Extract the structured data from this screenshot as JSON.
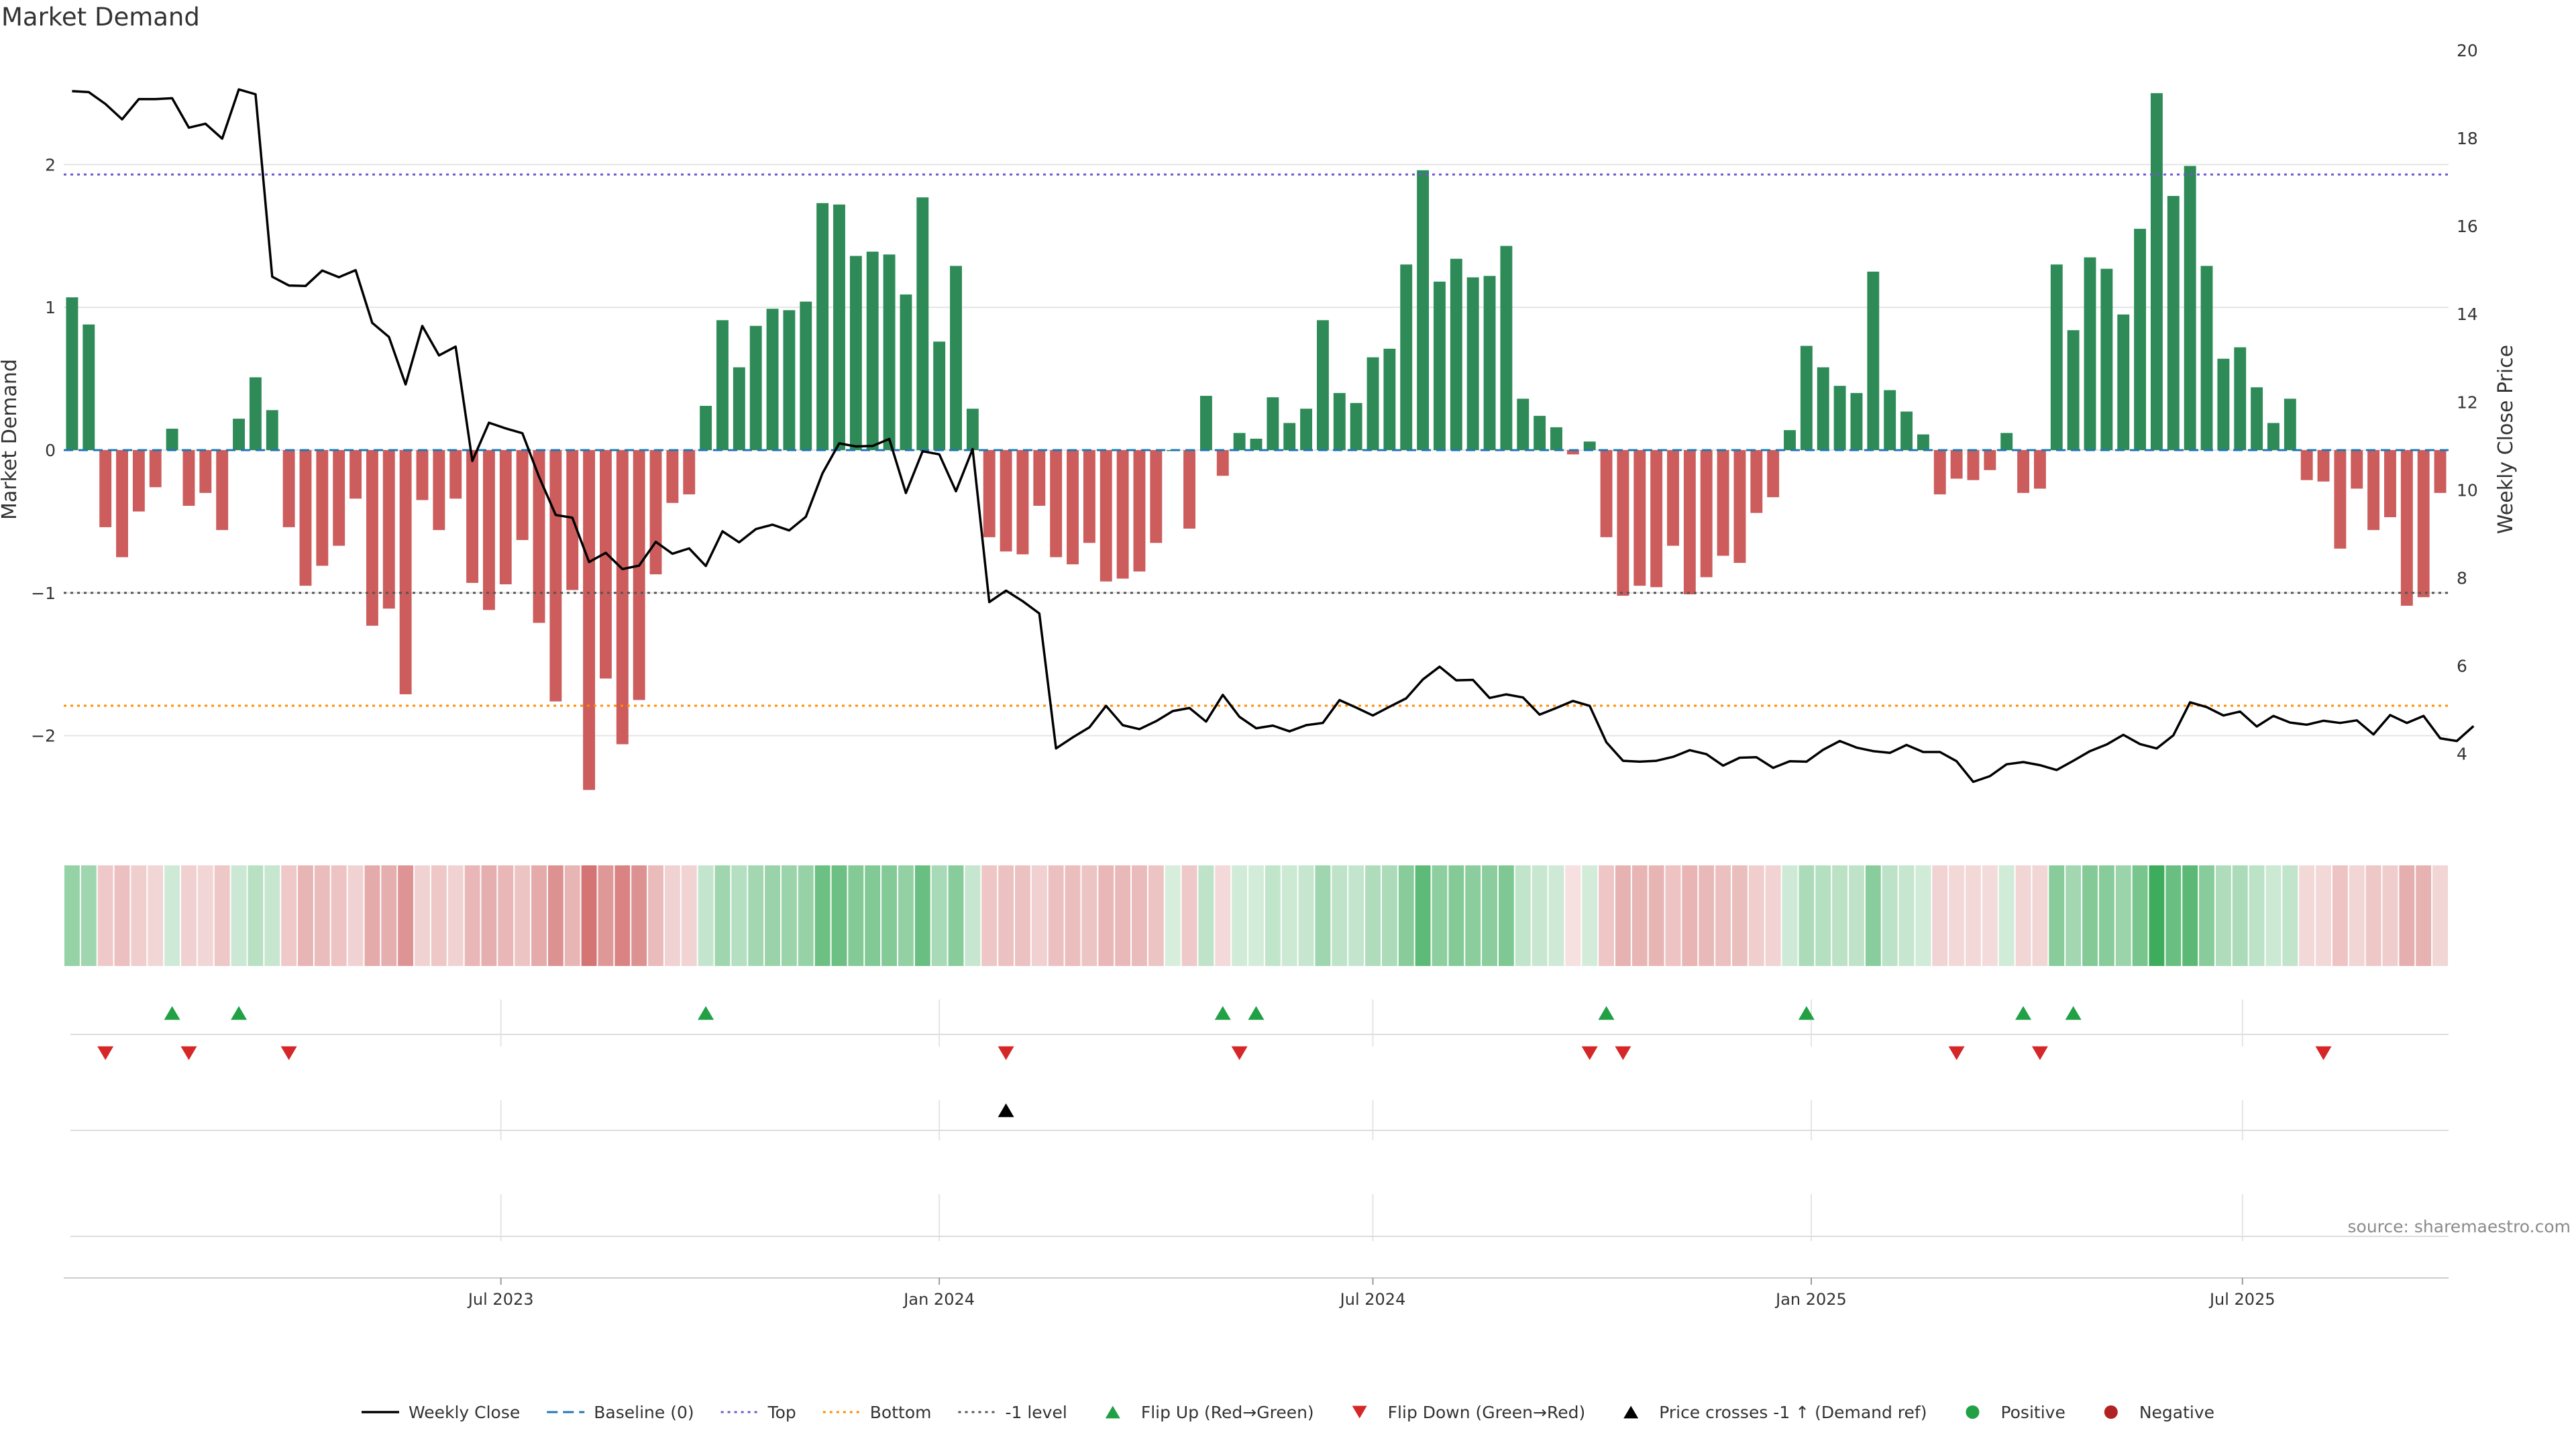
{
  "title": "Market Demand",
  "source": "source: sharemaestro.com",
  "colors": {
    "positive": "#2e8b57",
    "negative": "#cd5c5c",
    "price_line": "#000000",
    "baseline": "#1f77b4",
    "top": "#6a5acd",
    "bottom": "#ff8c00",
    "minus_one": "#555555",
    "flip_up": "#22a045",
    "flip_down": "#d62728",
    "cross": "#000000",
    "grid": "#e5e5e5"
  },
  "chart_data": {
    "type": "bar",
    "title": "Market Demand",
    "x_start": "2023-01-02",
    "x_step_days": 7,
    "x_ticks": [
      "Jul 2023",
      "Jan 2024",
      "Jul 2024",
      "Jan 2025",
      "Jul 2025"
    ],
    "x_tick_dates": [
      "2023-07-01",
      "2024-01-01",
      "2024-07-01",
      "2025-01-01",
      "2025-07-01"
    ],
    "y_left": {
      "label": "Market Demand",
      "ticks": [
        -2,
        -1,
        0,
        1,
        2
      ],
      "ylim": [
        -2.65,
        2.8
      ]
    },
    "y_right": {
      "label": "Weekly Close Price",
      "ticks": [
        4,
        6,
        8,
        10,
        12,
        14,
        16,
        18,
        20
      ],
      "ylim": [
        2.3,
        20.0
      ]
    },
    "levels": {
      "baseline": 0,
      "top": 1.93,
      "bottom": -1.79,
      "minus_one": -1.0
    },
    "series": [
      {
        "name": "Market Demand",
        "values": [
          1.07,
          0.88,
          -0.54,
          -0.75,
          -0.43,
          -0.26,
          0.15,
          -0.39,
          -0.3,
          -0.56,
          0.22,
          0.51,
          0.28,
          -0.54,
          -0.95,
          -0.81,
          -0.67,
          -0.34,
          -1.23,
          -1.11,
          -1.71,
          -0.35,
          -0.56,
          -0.34,
          -0.93,
          -1.12,
          -0.94,
          -0.63,
          -1.21,
          -1.76,
          -0.98,
          -2.38,
          -1.6,
          -2.06,
          -1.75,
          -0.87,
          -0.37,
          -0.31,
          0.31,
          0.91,
          0.58,
          0.87,
          0.99,
          0.98,
          1.04,
          1.73,
          1.72,
          1.36,
          1.39,
          1.37,
          1.09,
          1.77,
          0.76,
          1.29,
          0.29,
          -0.61,
          -0.71,
          -0.73,
          -0.39,
          -0.75,
          -0.8,
          -0.65,
          -0.92,
          -0.9,
          -0.85,
          -0.65,
          0.0,
          -0.55,
          0.38,
          -0.18,
          0.12,
          0.08,
          0.37,
          0.19,
          0.29,
          0.91,
          0.4,
          0.33,
          0.65,
          0.71,
          1.3,
          1.96,
          1.18,
          1.34,
          1.21,
          1.22,
          1.43,
          0.36,
          0.24,
          0.16,
          -0.03,
          0.06,
          -0.61,
          -1.02,
          -0.95,
          -0.96,
          -0.67,
          -1.01,
          -0.89,
          -0.74,
          -0.79,
          -0.44,
          -0.33,
          0.14,
          0.73,
          0.58,
          0.45,
          0.4,
          1.25,
          0.42,
          0.27,
          0.11,
          -0.31,
          -0.2,
          -0.21,
          -0.14,
          0.12,
          -0.3,
          -0.27,
          1.3,
          0.84,
          1.35,
          1.27,
          0.95,
          1.55,
          2.5,
          1.78,
          1.99,
          1.29,
          0.64,
          0.72,
          0.44,
          0.19,
          0.36,
          -0.21,
          -0.22,
          -0.69,
          -0.27,
          -0.56,
          -0.47,
          -1.09,
          -1.03,
          -0.3
        ]
      },
      {
        "name": "Weekly Close",
        "values": [
          19.07,
          19.05,
          18.78,
          18.43,
          18.89,
          18.89,
          18.91,
          18.24,
          18.33,
          17.99,
          19.11,
          19.0,
          14.85,
          14.65,
          14.64,
          14.99,
          14.84,
          15.0,
          13.8,
          13.48,
          12.4,
          13.73,
          13.06,
          13.26,
          10.66,
          11.53,
          11.4,
          11.29,
          10.3,
          9.43,
          9.37,
          8.36,
          8.57,
          8.2,
          8.28,
          8.82,
          8.55,
          8.67,
          8.27,
          9.06,
          8.81,
          9.11,
          9.21,
          9.08,
          9.39,
          10.38,
          11.06,
          10.99,
          11.0,
          11.16,
          9.93,
          10.88,
          10.81,
          9.97,
          10.93,
          7.45,
          7.71,
          7.47,
          7.19,
          4.12,
          4.37,
          4.6,
          5.09,
          4.65,
          4.56,
          4.74,
          4.97,
          5.04,
          4.73,
          5.34,
          4.84,
          4.58,
          4.64,
          4.51,
          4.65,
          4.7,
          5.22,
          5.05,
          4.87,
          5.07,
          5.26,
          5.69,
          5.98,
          5.67,
          5.68,
          5.27,
          5.35,
          5.28,
          4.89,
          5.04,
          5.2,
          5.09,
          4.26,
          3.84,
          3.82,
          3.84,
          3.93,
          4.08,
          3.99,
          3.73,
          3.91,
          3.92,
          3.68,
          3.83,
          3.82,
          4.09,
          4.29,
          4.14,
          4.06,
          4.02,
          4.2,
          4.04,
          4.04,
          3.83,
          3.36,
          3.49,
          3.76,
          3.81,
          3.74,
          3.63,
          3.84,
          4.06,
          4.21,
          4.43,
          4.22,
          4.12,
          4.42,
          5.17,
          5.06,
          4.87,
          4.96,
          4.62,
          4.86,
          4.71,
          4.66,
          4.75,
          4.7,
          4.76,
          4.44,
          4.88,
          4.7,
          4.86,
          4.35,
          4.29,
          4.63
        ]
      }
    ],
    "markers": {
      "flip_up_weeks": [
        6,
        10,
        38,
        69,
        71,
        92,
        104,
        117,
        120
      ],
      "flip_down_weeks": [
        2,
        7,
        13,
        56,
        70,
        91,
        93,
        113,
        118,
        135
      ],
      "price_cross_weeks": [
        56
      ]
    },
    "legend": {
      "position": "bottom-center",
      "entries": [
        {
          "label": "Weekly Close",
          "symbol": "line",
          "color": "#000000"
        },
        {
          "label": "Baseline (0)",
          "symbol": "dash",
          "color": "#1f77b4"
        },
        {
          "label": "Top",
          "symbol": "dot",
          "color": "#6a5acd"
        },
        {
          "label": "Bottom",
          "symbol": "dot",
          "color": "#ff8c00"
        },
        {
          "label": "-1 level",
          "symbol": "dot",
          "color": "#555555"
        },
        {
          "label": "Flip Up (Red→Green)",
          "symbol": "triangle-up",
          "color": "#22a045"
        },
        {
          "label": "Flip Down (Green→Red)",
          "symbol": "triangle-down",
          "color": "#d62728"
        },
        {
          "label": "Price crosses -1 ↑ (Demand ref)",
          "symbol": "triangle-up",
          "color": "#000000"
        },
        {
          "label": "Positive",
          "symbol": "circle",
          "color": "#22a045"
        },
        {
          "label": "Negative",
          "symbol": "circle",
          "color": "#b22222"
        }
      ]
    }
  }
}
